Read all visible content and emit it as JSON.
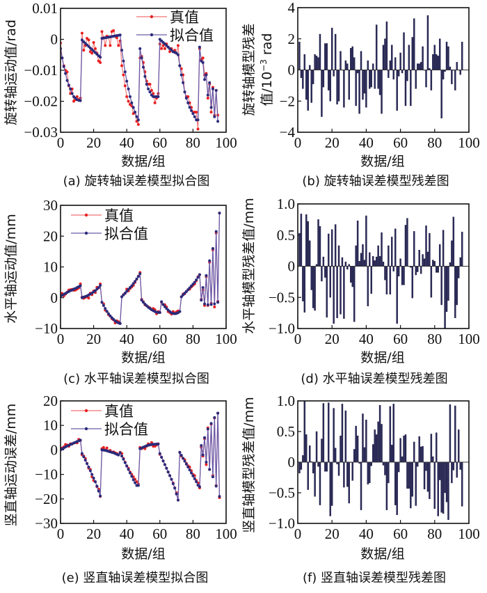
{
  "colors": {
    "true_line": "#f07070",
    "true_marker": "#e82020",
    "fit_line": "#6a5aa8",
    "fit_marker": "#2a2a7a",
    "bar": "#2b2a5a"
  },
  "chart_data": [
    {
      "id": "a",
      "type": "line",
      "caption": "(a) 旋转轴误差模型拟合图",
      "xlabel": "数据/组",
      "ylabel": "旋转轴运动值/rad",
      "xlim": [
        0,
        100
      ],
      "ylim": [
        -0.03,
        0.01
      ],
      "xticks": [
        "0",
        "20",
        "40",
        "60",
        "80",
        "100"
      ],
      "yticks": [
        "0.01",
        "0",
        "−0.01",
        "−0.02",
        "−0.03"
      ],
      "ytick_values": [
        0.01,
        0,
        -0.01,
        -0.02,
        -0.03
      ],
      "legend": {
        "position": "top-right",
        "entries": [
          "真值",
          "拟合值"
        ]
      },
      "series": [
        {
          "name": "真值",
          "values": [
            -0.0012,
            -0.006,
            -0.0085,
            -0.01,
            -0.0105,
            -0.015,
            -0.0175,
            -0.016,
            -0.02,
            -0.0195,
            -0.0185,
            -0.0195,
            -0.019,
            0.002,
            -0.0035,
            -0.002,
            0.0003,
            -0.0002,
            -0.004,
            -0.0045,
            -0.001,
            -0.003,
            -0.0045,
            -0.007,
            -0.0075,
            0.0025,
            0.0005,
            -0.002,
            0.001,
            0.0008,
            -0.002,
            0.0025,
            0.0028,
            0.001,
            0.0005,
            -0.002,
            -0.0005,
            -0.0085,
            -0.0115,
            -0.015,
            -0.0185,
            -0.02,
            -0.021,
            -0.0215,
            -0.024,
            -0.0235,
            -0.0265,
            -0.0275,
            -0.006,
            -0.0055,
            -0.0075,
            -0.0105,
            -0.0135,
            -0.0145,
            -0.0145,
            -0.0165,
            -0.0175,
            -0.0205,
            -0.019,
            -0.0175,
            -0.0015,
            -0.003,
            -0.002,
            -0.003,
            -0.0015,
            -0.0025,
            -0.004,
            -0.003,
            -0.004,
            -0.0035,
            -0.0045,
            -0.002,
            -0.0085,
            -0.0095,
            -0.0115,
            -0.017,
            -0.0185,
            -0.0185,
            -0.0205,
            -0.022,
            -0.0235,
            -0.0235,
            -0.0235,
            -0.029,
            -0.003,
            -0.0065,
            -0.006,
            -0.0115,
            -0.011,
            -0.019,
            -0.0145,
            -0.0235,
            -0.0155,
            -0.0245,
            -0.0165,
            -0.0245
          ]
        },
        {
          "name": "拟合值",
          "values": [
            -0.003,
            -0.006,
            -0.0088,
            -0.011,
            -0.0133,
            -0.0148,
            -0.016,
            -0.0175,
            -0.0185,
            -0.019,
            -0.0195,
            -0.0197,
            -0.0198,
            -0.0002,
            -0.0008,
            -0.0013,
            -0.0018,
            -0.0023,
            -0.0028,
            -0.0033,
            -0.0038,
            -0.0043,
            -0.0048,
            -0.0053,
            -0.0058,
            0.0003,
            0.0004,
            0.0005,
            0.0006,
            0.0007,
            0.0008,
            0.0009,
            0.001,
            0.0011,
            0.0012,
            0.0013,
            0.0014,
            -0.0035,
            -0.007,
            -0.0105,
            -0.0135,
            -0.016,
            -0.0185,
            -0.0205,
            -0.022,
            -0.0235,
            -0.025,
            -0.026,
            -0.003,
            -0.006,
            -0.009,
            -0.012,
            -0.0145,
            -0.016,
            -0.017,
            -0.018,
            -0.0185,
            -0.0185,
            -0.0185,
            -0.0185,
            0.0,
            -0.0005,
            -0.001,
            -0.0015,
            -0.002,
            -0.0025,
            -0.003,
            -0.0035,
            -0.004,
            -0.0042,
            -0.0044,
            -0.005,
            -0.0085,
            -0.0115,
            -0.014,
            -0.017,
            -0.019,
            -0.0205,
            -0.022,
            -0.023,
            -0.024,
            -0.025,
            -0.026,
            -0.026,
            -0.0025,
            -0.007,
            -0.0075,
            -0.013,
            -0.0115,
            -0.018,
            -0.014,
            -0.022,
            -0.016,
            -0.025,
            -0.0165,
            -0.0265
          ]
        }
      ]
    },
    {
      "id": "b",
      "type": "bar",
      "caption": "(b) 旋转轴误差模型残差图",
      "xlabel": "数据/组",
      "ylabel_line1": "旋转轴模型残差",
      "ylabel_line2": "值/10",
      "ylabel_sup": "−3",
      "ylabel_unit": " rad",
      "xlim": [
        0,
        100
      ],
      "ylim": [
        -4,
        4
      ],
      "xticks": [
        "0",
        "20",
        "40",
        "60",
        "80",
        "100"
      ],
      "yticks": [
        "4",
        "2",
        "0",
        "−2",
        "−4"
      ],
      "ytick_values": [
        4,
        2,
        0,
        -2,
        -4
      ],
      "values": [
        1.8,
        -0.5,
        -1.2,
        1.0,
        -1.9,
        -2.6,
        0.3,
        -2.1,
        -0.9,
        1.0,
        0.9,
        0.8,
        2.3,
        -3.0,
        -1.1,
        1.7,
        1.7,
        -1.3,
        -2.0,
        2.7,
        -0.4,
        2.3,
        -2.2,
        -2.0,
        1.2,
        0.0,
        -2.4,
        0.6,
        0.4,
        -1.9,
        1.4,
        1.5,
        0.8,
        -2.3,
        -0.2,
        -2.8,
        1.2,
        -1.9,
        -1.5,
        -2.4,
        0.6,
        -1.2,
        -1.1,
        0.4,
        -1.2,
        2.9,
        -1.2,
        -1.6,
        -2.8,
        1.6,
        2.0,
        3.1,
        -0.5,
        0.6,
        1.6,
        -0.6,
        0.8,
        -2.6,
        -0.4,
        1.1,
        -0.2,
        2.4,
        -2.3,
        -0.7,
        1.6,
        -2.3,
        2.1,
        3.3,
        -1.2,
        0.4,
        0.4,
        0.5,
        1.5,
        0.0,
        -1.1,
        3.5,
        0.1,
        -1.3,
        1.0,
        1.6,
        1.0,
        0.9,
        2.0,
        -3.1,
        -0.6,
        -0.1,
        1.8,
        1.5,
        0.2,
        -0.9,
        0.0,
        -1.3,
        0.5,
        0.0,
        -0.3,
        1.8
      ]
    },
    {
      "id": "c",
      "type": "line",
      "caption": "(c) 水平轴误差模型拟合图",
      "xlabel": "数据/组",
      "ylabel": "水平轴运动值/mm",
      "xlim": [
        0,
        100
      ],
      "ylim": [
        -10,
        30
      ],
      "xticks": [
        "0",
        "20",
        "40",
        "60",
        "80",
        "100"
      ],
      "yticks": [
        "30",
        "20",
        "10",
        "0",
        "−10"
      ],
      "ytick_values": [
        30,
        20,
        10,
        0,
        -10
      ],
      "legend": {
        "position": "top-left",
        "entries": [
          "真值",
          "拟合值"
        ]
      },
      "series": [
        {
          "name": "真值",
          "values": [
            0.5,
            1.4,
            0.6,
            1.2,
            1.8,
            2.5,
            2.6,
            2.7,
            2.4,
            2.5,
            2.8,
            3.2,
            4.5,
            0.2,
            -0.2,
            0.1,
            0.3,
            -0.1,
            1.5,
            1.0,
            2.2,
            1.7,
            3.4,
            3.2,
            4.5,
            -1.5,
            -2.0,
            -4.0,
            -4.5,
            -5.5,
            -6.0,
            -6.8,
            -7.2,
            -8.2,
            -7.5,
            -7.8,
            -8.3,
            0.3,
            1.0,
            1.4,
            2.8,
            2.2,
            3.0,
            3.5,
            4.0,
            5.0,
            6.0,
            7.0,
            8.2,
            -0.5,
            -1.3,
            -2.3,
            -2.6,
            -3.0,
            -3.3,
            -3.8,
            -3.5,
            -3.9,
            -5.2,
            -4.5,
            -4.8,
            -1.5,
            -2.2,
            -2.3,
            -3.0,
            -4.5,
            -4.8,
            -5.3,
            -4.5,
            -5.0,
            -4.6,
            -4.3,
            -4.5,
            0.3,
            1.2,
            1.3,
            2.0,
            2.6,
            2.8,
            3.5,
            4.0,
            4.5,
            5.5,
            6.8,
            7.5,
            -0.5,
            2.5,
            -2.5,
            6.8,
            -2.5,
            11.5,
            -1.8,
            15.5,
            -3.0,
            21.0,
            -1.2,
            27.5
          ]
        },
        {
          "name": "拟合值",
          "values": [
            0.5,
            0.8,
            1.1,
            1.4,
            1.7,
            2.0,
            2.3,
            2.5,
            2.8,
            3.0,
            3.3,
            3.6,
            3.9,
            0.0,
            0.2,
            0.4,
            0.6,
            0.9,
            1.2,
            1.5,
            1.9,
            2.3,
            2.8,
            3.3,
            4.0,
            -1.5,
            -2.5,
            -3.5,
            -4.4,
            -5.2,
            -5.9,
            -6.5,
            -7.0,
            -7.5,
            -7.9,
            -8.2,
            -8.4,
            0.3,
            0.9,
            1.5,
            2.1,
            2.7,
            3.3,
            3.9,
            4.6,
            5.3,
            6.1,
            6.9,
            7.8,
            -0.8,
            -1.5,
            -2.1,
            -2.6,
            -3.1,
            -3.5,
            -3.9,
            -4.2,
            -4.5,
            -4.7,
            -4.8,
            -4.8,
            -1.3,
            -2.2,
            -2.9,
            -3.5,
            -4.0,
            -4.5,
            -4.9,
            -5.1,
            -5.2,
            -5.1,
            -4.9,
            -4.5,
            0.3,
            0.9,
            1.5,
            2.0,
            2.6,
            3.2,
            3.8,
            4.4,
            5.0,
            5.8,
            6.6,
            7.5,
            -0.8,
            3.3,
            -2.0,
            7.2,
            -2.3,
            12.0,
            -2.2,
            16.0,
            -2.0,
            21.5,
            -1.5,
            27.5
          ]
        }
      ]
    },
    {
      "id": "d",
      "type": "bar",
      "caption": "(d) 水平轴误差模型残差图",
      "xlabel": "数据/组",
      "ylabel": "水平轴模型残差值/mm",
      "xlim": [
        0,
        100
      ],
      "ylim": [
        -1.0,
        1.0
      ],
      "xticks": [
        "0",
        "20",
        "40",
        "60",
        "80",
        "100"
      ],
      "yticks": [
        "1.0",
        "0.5",
        "0",
        "−0.5",
        "−1.0"
      ],
      "ytick_values": [
        1.0,
        0.5,
        0,
        -0.5,
        -1.0
      ],
      "values": [
        0.53,
        0.84,
        -0.56,
        -0.74,
        0.83,
        0.72,
        0.41,
        -0.38,
        -0.67,
        -0.71,
        0.03,
        0.75,
        0.64,
        -0.24,
        0.15,
        -0.18,
        -0.82,
        0.52,
        -0.5,
        0.59,
        -0.92,
        0.67,
        -0.83,
        0.33,
        -0.77,
        0.14,
        -0.84,
        0.07,
        -0.05,
        0.03,
        -0.26,
        -0.33,
        -0.89,
        0.33,
        0.73,
        0.08,
        0.21,
        0.35,
        0.1,
        0.81,
        -0.64,
        0.22,
        -0.44,
        0.16,
        0.09,
        0.15,
        0.33,
        0.16,
        0.54,
        0.07,
        -0.22,
        -0.45,
        0.33,
        -0.45,
        0.47,
        -0.08,
        0.6,
        -0.92,
        -0.16,
        0.12,
        -0.3,
        -0.3,
        0.66,
        0.77,
        0.0,
        -0.02,
        -0.51,
        0.56,
        -0.14,
        -0.09,
        0.26,
        -0.12,
        0.19,
        0.12,
        0.65,
        0.23,
        0.53,
        -0.5,
        0.1,
        0.08,
        -0.1,
        -0.1,
        0.35,
        -0.62,
        0.58,
        -1.0,
        -0.73,
        -0.55,
        0.06,
        0.41,
        0.79,
        -0.83,
        -0.62,
        -0.19,
        0.14,
        0.55
      ]
    },
    {
      "id": "e",
      "type": "line",
      "caption": "(e) 竖直轴误差模型拟合图",
      "xlabel": "数据/组",
      "ylabel": "竖直轴运动误差/mm",
      "xlim": [
        0,
        100
      ],
      "ylim": [
        -30,
        20
      ],
      "xticks": [
        "0",
        "20",
        "40",
        "60",
        "80",
        "100"
      ],
      "yticks": [
        "20",
        "10",
        "0",
        "−10",
        "−20",
        "−30"
      ],
      "ytick_values": [
        20,
        10,
        0,
        -10,
        -20,
        -30
      ],
      "legend": {
        "position": "top-left",
        "entries": [
          "真值",
          "拟合值"
        ]
      },
      "series": [
        {
          "name": "真值",
          "values": [
            0.2,
            0.8,
            1.2,
            2.2,
            2.0,
            1.5,
            2.5,
            2.4,
            2.8,
            3.0,
            2.9,
            4.3,
            3.8,
            -2.0,
            -2.5,
            -3.5,
            -5.5,
            -7.5,
            -8.0,
            -11.0,
            -12.5,
            -13.0,
            -15.0,
            -16.0,
            -19.0,
            0.5,
            1.0,
            0.0,
            0.8,
            -0.5,
            -0.2,
            -1.0,
            -0.8,
            -1.2,
            -1.5,
            -2.0,
            -1.0,
            -1.5,
            -3.5,
            -5.0,
            -6.5,
            -7.5,
            -9.0,
            -10.0,
            -11.0,
            -12.0,
            -13.0,
            -14.0,
            1.0,
            0.5,
            1.0,
            0.5,
            1.5,
            2.5,
            2.0,
            3.0,
            1.5,
            1.5,
            2.0,
            2.5,
            -1.8,
            -3.0,
            -4.5,
            -6.0,
            -7.5,
            -9.0,
            -10.5,
            -12.0,
            -13.5,
            -15.5,
            -17.5,
            -20.5,
            -1.0,
            -2.5,
            -3.5,
            -4.0,
            -5.5,
            -6.5,
            -7.0,
            -8.5,
            -10.0,
            -10.5,
            -12.5,
            -13.5,
            -15.5,
            1.0,
            -2.5,
            4.5,
            -6.0,
            9.0,
            -8.0,
            10.5,
            -10.5,
            13.0,
            -14.5,
            15.0,
            -19.5
          ]
        },
        {
          "name": "拟合值",
          "values": [
            0.0,
            0.4,
            0.8,
            1.2,
            1.6,
            1.9,
            2.2,
            2.5,
            2.8,
            3.1,
            3.4,
            3.7,
            4.0,
            -1.5,
            -2.8,
            -4.2,
            -5.6,
            -7.0,
            -8.5,
            -10.0,
            -11.5,
            -13.0,
            -14.8,
            -16.8,
            -18.8,
            0.0,
            -0.1,
            -0.2,
            -0.4,
            -0.6,
            -0.8,
            -1.0,
            -1.2,
            -1.5,
            -1.8,
            -2.1,
            -1.2,
            -2.5,
            -3.8,
            -5.2,
            -6.6,
            -8.0,
            -9.4,
            -10.8,
            -12.2,
            -13.4,
            -14.5,
            -14.5,
            0.5,
            0.8,
            1.1,
            1.4,
            1.7,
            1.9,
            2.1,
            2.2,
            2.3,
            2.3,
            2.4,
            2.4,
            -1.5,
            -3.0,
            -4.5,
            -6.0,
            -7.5,
            -9.0,
            -10.5,
            -12.0,
            -13.8,
            -15.6,
            -18.0,
            -20.5,
            -1.0,
            -2.2,
            -3.4,
            -4.6,
            -5.8,
            -7.0,
            -8.2,
            -9.4,
            -10.6,
            -11.8,
            -13.0,
            -14.4,
            -15.0,
            1.8,
            -2.0,
            5.0,
            -5.0,
            8.5,
            -8.0,
            10.8,
            -11.0,
            13.2,
            -14.8,
            15.0,
            -19.0
          ]
        }
      ]
    },
    {
      "id": "f",
      "type": "bar",
      "caption": "(f) 竖直轴误差模型残差图",
      "xlabel": "数据/组",
      "ylabel": "竖直轴模型残差值/mm",
      "xlim": [
        0,
        100
      ],
      "ylim": [
        -1.0,
        1.0
      ],
      "xticks": [
        "0",
        "20",
        "40",
        "60",
        "80",
        "100"
      ],
      "yticks": [
        "1.0",
        "0.5",
        "0",
        "−0.5",
        "−1.0"
      ],
      "ytick_values": [
        1.0,
        0.5,
        0,
        -0.5,
        -1.0
      ],
      "values": [
        -0.18,
        -0.12,
        0.11,
        1.0,
        0.45,
        -0.45,
        0.27,
        0.01,
        -0.18,
        -0.56,
        0.5,
        -0.07,
        -0.7,
        0.38,
        0.96,
        -0.15,
        -0.15,
        0.97,
        -0.88,
        -0.71,
        0.88,
        0.23,
        -0.03,
        -0.22,
        0.43,
        0.95,
        -0.41,
        0.84,
        -0.4,
        -0.67,
        0.0,
        -0.3,
        0.21,
        0.59,
        0.43,
        -0.02,
        -0.78,
        0.79,
        0.24,
        0.69,
        -0.36,
        -0.34,
        -0.06,
        0.29,
        0.53,
        0.45,
        0.66,
        0.93,
        0.62,
        -0.05,
        -0.21,
        -0.78,
        -0.34,
        0.91,
        0.28,
        0.95,
        -0.7,
        -0.86,
        -0.16,
        0.39,
        0.09,
        0.43,
        0.45,
        -0.43,
        -0.43,
        -0.75,
        -0.56,
        0.33,
        -0.71,
        -0.07,
        0.42,
        0.25,
        0.26,
        -0.44,
        -0.14,
        -0.48,
        -0.6,
        0.46,
        0.09,
        -0.76,
        0.48,
        -0.88,
        -0.29,
        -0.82,
        -0.84,
        -0.5,
        -0.65,
        -0.94,
        0.94,
        -0.34,
        -0.13,
        0.92,
        -0.25,
        0.53,
        -0.12,
        -0.72
      ]
    }
  ]
}
